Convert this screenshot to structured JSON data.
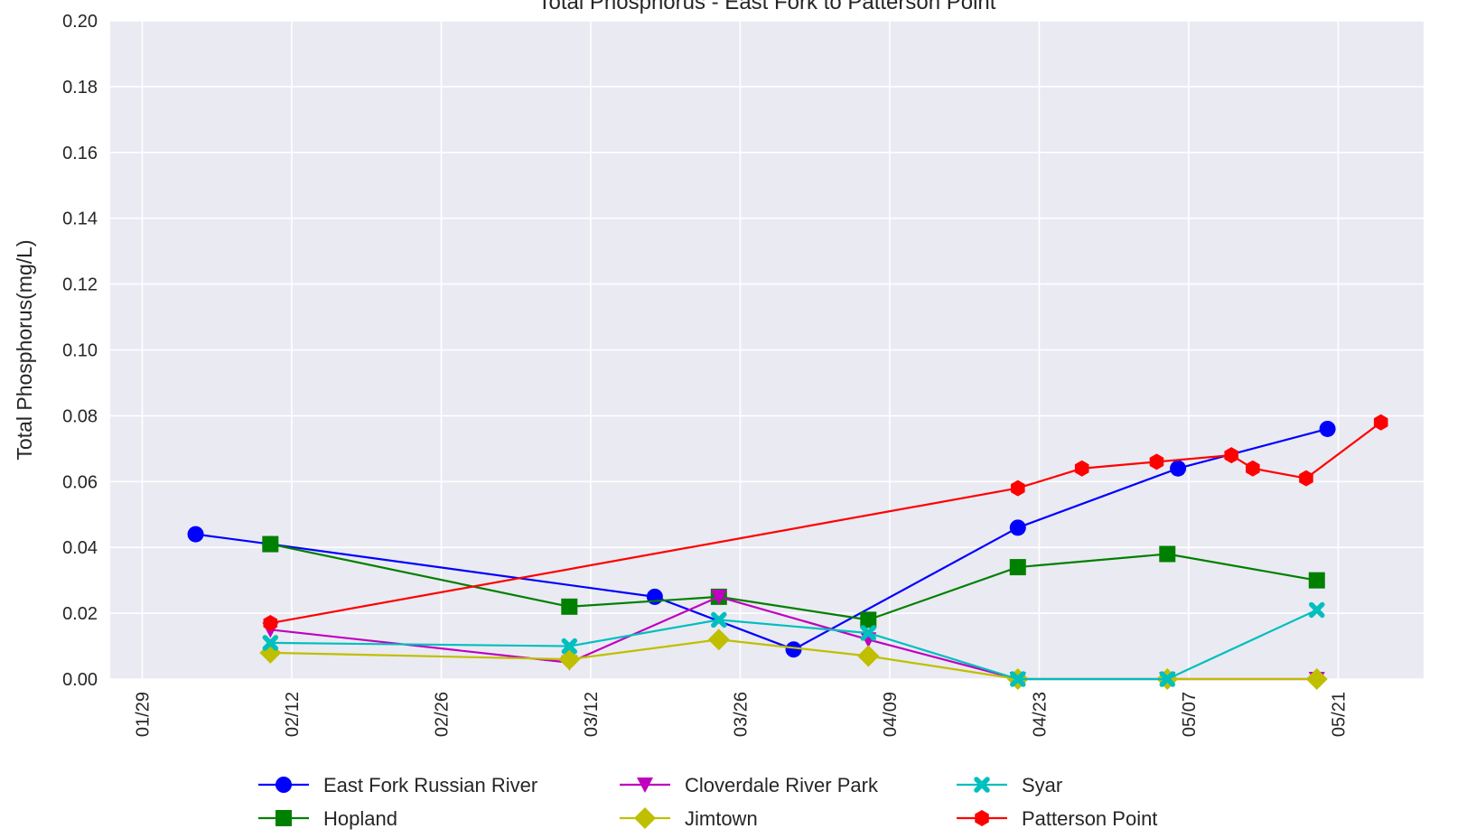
{
  "chart_data": {
    "type": "line",
    "title": "Total Phosphorus - East Fork to Patterson Point",
    "xlabel": "",
    "ylabel": "Total Phosphorus(mg/L)",
    "x_type": "date",
    "xlim": [
      "2019-01-26",
      "2019-05-29"
    ],
    "ylim": [
      0,
      0.2
    ],
    "x_ticks": [
      {
        "date": "2019-01-29",
        "label": "01/29"
      },
      {
        "date": "2019-02-12",
        "label": "02/12"
      },
      {
        "date": "2019-02-26",
        "label": "02/26"
      },
      {
        "date": "2019-03-12",
        "label": "03/12"
      },
      {
        "date": "2019-03-26",
        "label": "03/26"
      },
      {
        "date": "2019-04-09",
        "label": "04/09"
      },
      {
        "date": "2019-04-23",
        "label": "04/23"
      },
      {
        "date": "2019-05-07",
        "label": "05/07"
      },
      {
        "date": "2019-05-21",
        "label": "05/21"
      }
    ],
    "y_ticks": [
      {
        "value": 0.0,
        "label": "0.00"
      },
      {
        "value": 0.02,
        "label": "0.02"
      },
      {
        "value": 0.04,
        "label": "0.04"
      },
      {
        "value": 0.06,
        "label": "0.06"
      },
      {
        "value": 0.08,
        "label": "0.08"
      },
      {
        "value": 0.1,
        "label": "0.10"
      },
      {
        "value": 0.12,
        "label": "0.12"
      },
      {
        "value": 0.14,
        "label": "0.14"
      },
      {
        "value": 0.16,
        "label": "0.16"
      },
      {
        "value": 0.18,
        "label": "0.18"
      },
      {
        "value": 0.2,
        "label": "0.20"
      }
    ],
    "grid": true,
    "background": "#eaeaf2",
    "legend_position": "bottom-center",
    "series": [
      {
        "name": "East Fork Russian River",
        "color": "#0000ff",
        "marker": "circle",
        "points": [
          [
            "2019-02-03",
            0.044
          ],
          [
            "2019-02-10",
            0.041
          ],
          [
            "2019-03-18",
            0.025
          ],
          [
            "2019-03-31",
            0.009
          ],
          [
            "2019-04-21",
            0.046
          ],
          [
            "2019-05-06",
            0.064
          ],
          [
            "2019-05-20",
            0.076
          ]
        ]
      },
      {
        "name": "Hopland",
        "color": "#008000",
        "marker": "square",
        "points": [
          [
            "2019-02-10",
            0.041
          ],
          [
            "2019-03-10",
            0.022
          ],
          [
            "2019-03-24",
            0.025
          ],
          [
            "2019-04-07",
            0.018
          ],
          [
            "2019-04-21",
            0.034
          ],
          [
            "2019-05-05",
            0.038
          ],
          [
            "2019-05-19",
            0.03
          ]
        ]
      },
      {
        "name": "Cloverdale River Park",
        "color": "#bf00bf",
        "marker": "triangle-down",
        "points": [
          [
            "2019-02-10",
            0.015
          ],
          [
            "2019-03-10",
            0.005
          ],
          [
            "2019-03-24",
            0.025
          ],
          [
            "2019-04-07",
            0.012
          ],
          [
            "2019-04-21",
            0.0
          ],
          [
            "2019-05-05",
            0.0
          ],
          [
            "2019-05-19",
            0.0
          ]
        ]
      },
      {
        "name": "Jimtown",
        "color": "#bfbf00",
        "marker": "diamond",
        "points": [
          [
            "2019-02-10",
            0.008
          ],
          [
            "2019-03-10",
            0.006
          ],
          [
            "2019-03-24",
            0.012
          ],
          [
            "2019-04-07",
            0.007
          ],
          [
            "2019-04-21",
            0.0
          ],
          [
            "2019-05-05",
            0.0
          ],
          [
            "2019-05-19",
            0.0
          ]
        ]
      },
      {
        "name": "Syar",
        "color": "#00bfbf",
        "marker": "x",
        "points": [
          [
            "2019-02-10",
            0.011
          ],
          [
            "2019-03-10",
            0.01
          ],
          [
            "2019-03-24",
            0.018
          ],
          [
            "2019-04-07",
            0.014
          ],
          [
            "2019-04-21",
            0.0
          ],
          [
            "2019-05-05",
            0.0
          ],
          [
            "2019-05-19",
            0.021
          ]
        ]
      },
      {
        "name": "Patterson Point",
        "color": "#ff0000",
        "marker": "hexagon",
        "points": [
          [
            "2019-02-10",
            0.017
          ],
          [
            "2019-04-21",
            0.058
          ],
          [
            "2019-04-27",
            0.064
          ],
          [
            "2019-05-04",
            0.066
          ],
          [
            "2019-05-11",
            0.068
          ],
          [
            "2019-05-13",
            0.064
          ],
          [
            "2019-05-18",
            0.061
          ],
          [
            "2019-05-25",
            0.078
          ]
        ]
      }
    ]
  }
}
